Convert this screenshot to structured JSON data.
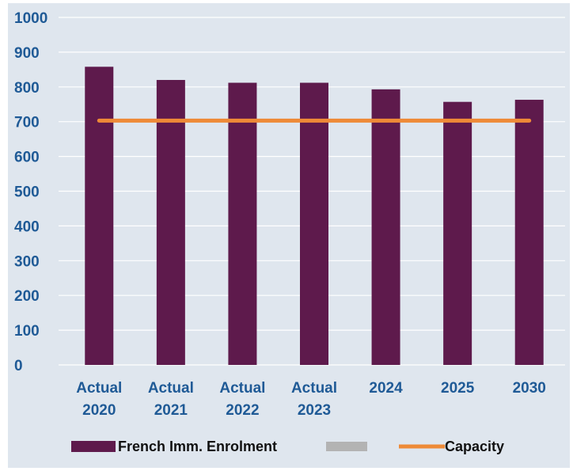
{
  "chart_data": {
    "type": "bar",
    "categories": [
      [
        "Actual",
        "2020"
      ],
      [
        "Actual",
        "2021"
      ],
      [
        "Actual",
        "2022"
      ],
      [
        "Actual",
        "2023"
      ],
      [
        "2024"
      ],
      [
        "2025"
      ],
      [
        "2030"
      ]
    ],
    "series": [
      {
        "name": "French Imm. Enrolment",
        "type": "bar",
        "color": "#5e1a4c",
        "values": [
          858,
          820,
          812,
          812,
          793,
          757,
          763
        ]
      },
      {
        "name": "Capacity",
        "type": "line",
        "color": "#ee8a37",
        "values": [
          703,
          703,
          703,
          703,
          703,
          703,
          703
        ]
      }
    ],
    "ylim": [
      0,
      1000
    ],
    "yticks": [
      0,
      100,
      200,
      300,
      400,
      500,
      600,
      700,
      800,
      900,
      1000
    ],
    "grid": true,
    "legend": {
      "position": "bottom",
      "entries": [
        {
          "label": "French Imm. Enrolment",
          "color": "#5e1a4c",
          "marker": "bar"
        },
        {
          "label": "",
          "color": "#b3b3b3",
          "marker": "bar"
        },
        {
          "label": "Capacity",
          "color": "#ee8a37",
          "marker": "line"
        }
      ]
    },
    "label_color": "#1f5a96"
  }
}
